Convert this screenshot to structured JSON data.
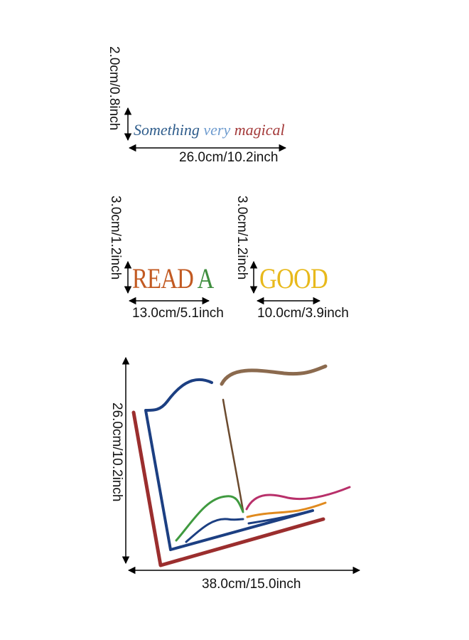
{
  "phrase1": {
    "word1": "Something",
    "word2": "very",
    "word3": "magical",
    "color1": "#2f5d8c",
    "color2": "#6f9ccf",
    "color3": "#a43a3a",
    "height_label": "2.0cm/0.8inch",
    "width_label": "26.0cm/10.2inch"
  },
  "phrase2": {
    "word1": "READ",
    "word2": "A",
    "color1": "#c25a22",
    "color2": "#3f8e3f",
    "height_label": "3.0cm/1.2inch",
    "width_label": "13.0cm/5.1inch"
  },
  "phrase3": {
    "word1": "GOOD",
    "color1": "#e8b91c",
    "height_label": "3.0cm/1.2inch",
    "width_label": "10.0cm/3.9inch"
  },
  "book": {
    "height_label": "26.0cm/10.2inch",
    "width_label": "38.0cm/15.0inch",
    "colors": {
      "cover": "#9b2e2e",
      "page_left": "#1c3f82",
      "bookmark": "#8b6a4e",
      "spine": "#6b4a2e",
      "green": "#3f9a3f",
      "pink": "#b8306a",
      "orange": "#e08a1e",
      "navy": "#1c3f82"
    }
  }
}
